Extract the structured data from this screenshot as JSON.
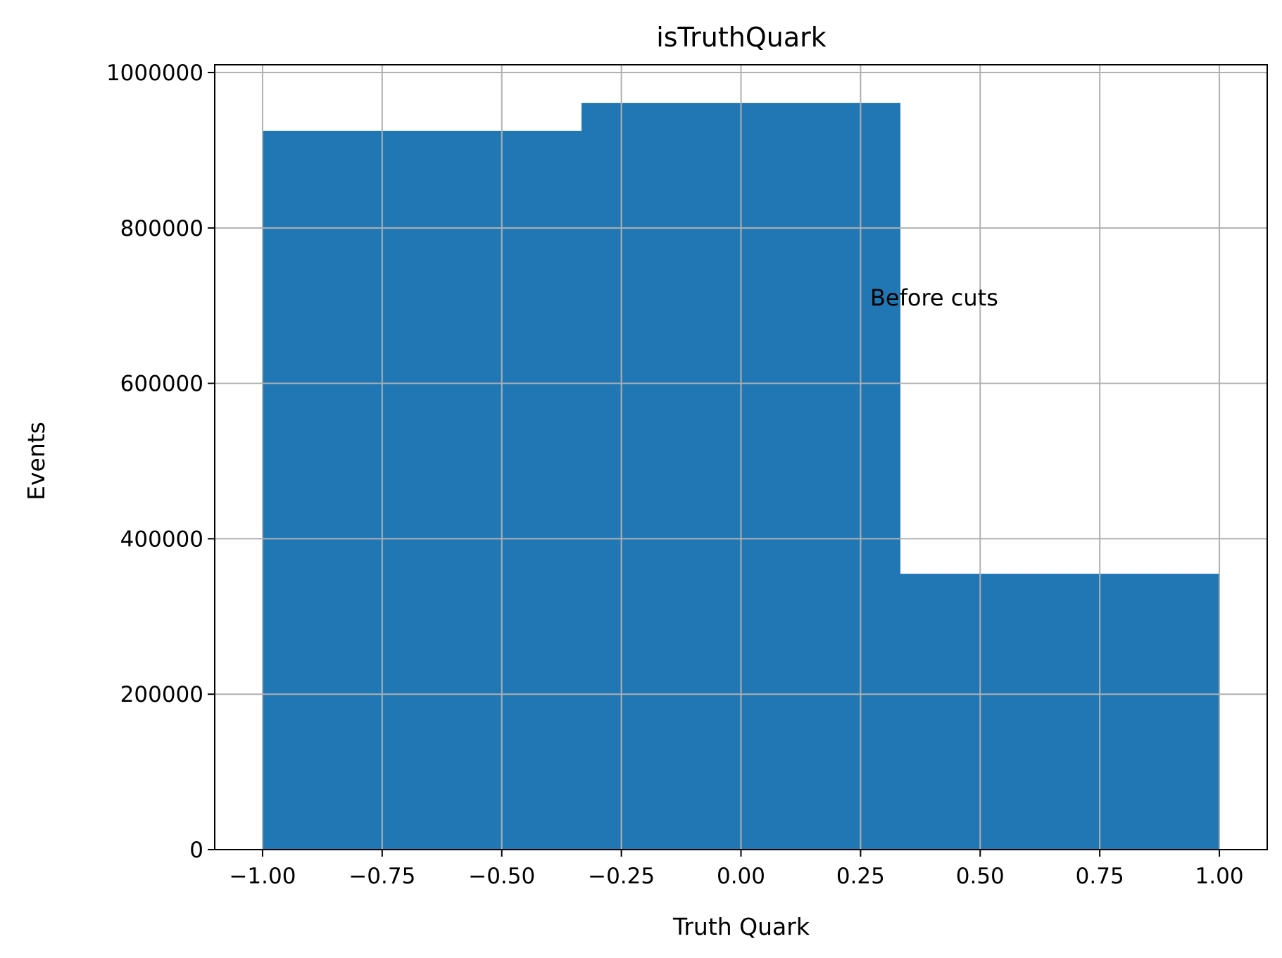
{
  "chart_data": {
    "type": "bar",
    "title": "isTruthQuark",
    "xlabel": "Truth Quark",
    "ylabel": "Events",
    "annotation": {
      "text": "Before cuts",
      "x": 0.27,
      "y": 700000
    },
    "bins": [
      {
        "x0": -1.0,
        "x1": -0.3333,
        "value": 925000
      },
      {
        "x0": -0.3333,
        "x1": 0.3333,
        "value": 961000
      },
      {
        "x0": 0.3333,
        "x1": 1.0,
        "value": 355000
      }
    ],
    "xlim": [
      -1.1,
      1.1
    ],
    "ylim": [
      0,
      1000000
    ],
    "xticks": [
      -1.0,
      -0.75,
      -0.5,
      -0.25,
      0.0,
      0.25,
      0.5,
      0.75,
      1.0
    ],
    "xtick_labels": [
      "−1.00",
      "−0.75",
      "−0.50",
      "−0.25",
      "0.00",
      "0.25",
      "0.50",
      "0.75",
      "1.00"
    ],
    "yticks": [
      0,
      200000,
      400000,
      600000,
      800000,
      1000000
    ],
    "ytick_labels": [
      "0",
      "200000",
      "400000",
      "600000",
      "800000",
      "1000000"
    ],
    "grid": true,
    "colors": {
      "bar": "#2077b4",
      "grid": "#b0b0b0",
      "axis": "#000000"
    }
  }
}
